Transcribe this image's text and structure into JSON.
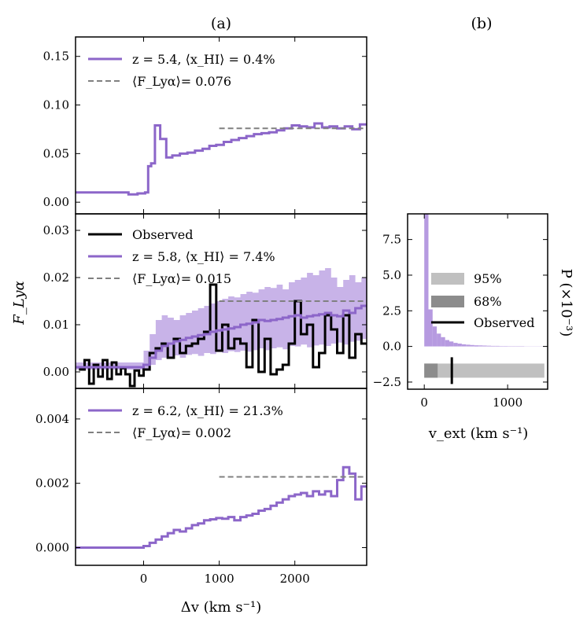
{
  "figure": {
    "label_a": "(a)",
    "label_b": "(b)"
  },
  "colors": {
    "model": "#8c66c9",
    "band": "#b69ae0",
    "mean": "#808080",
    "observed": "#000000",
    "ci95": "#c0c0c0",
    "ci68": "#8c8c8c"
  },
  "chart_data": [
    {
      "id": "z54",
      "type": "line",
      "step": true,
      "xlim": [
        -900,
        2950
      ],
      "ylim": [
        -0.012,
        0.17
      ],
      "yticks": [
        "0.00",
        "0.05",
        "0.10",
        "0.15"
      ],
      "ytick_values": [
        0,
        0.05,
        0.1,
        0.15
      ],
      "legend": {
        "model": "z = 5.4, ⟨x_HI⟩ = 0.4%",
        "mean": "⟨F_Lyα⟩= 0.076"
      },
      "mean": {
        "value": 0.076,
        "x_range": [
          1000,
          2950
        ]
      },
      "series": [
        {
          "name": "model",
          "edges": [
            -900,
            -200,
            -80,
            20,
            60,
            100,
            150,
            220,
            300,
            380,
            480,
            580,
            680,
            780,
            870,
            960,
            1060,
            1160,
            1260,
            1360,
            1460,
            1560,
            1660,
            1760,
            1860,
            1960,
            2060,
            2160,
            2260,
            2360,
            2460,
            2560,
            2660,
            2760,
            2860,
            2950
          ],
          "values": [
            0.01,
            0.008,
            0.009,
            0.01,
            0.037,
            0.04,
            0.079,
            0.065,
            0.046,
            0.048,
            0.05,
            0.051,
            0.053,
            0.055,
            0.058,
            0.059,
            0.062,
            0.064,
            0.066,
            0.068,
            0.07,
            0.071,
            0.072,
            0.074,
            0.076,
            0.079,
            0.078,
            0.077,
            0.081,
            0.077,
            0.078,
            0.076,
            0.078,
            0.075,
            0.08
          ]
        }
      ]
    },
    {
      "id": "z58",
      "type": "line",
      "step": true,
      "xlim": [
        -900,
        2950
      ],
      "ylim": [
        -0.0035,
        0.0335
      ],
      "yticks": [
        "0.00",
        "0.01",
        "0.02",
        "0.03"
      ],
      "ytick_values": [
        0,
        0.01,
        0.02,
        0.03
      ],
      "ylabel": "F_Lyα",
      "legend": {
        "observed": "Observed",
        "model": "z = 5.8, ⟨x_HI⟩ = 7.4%",
        "mean": "⟨F_Lyα⟩= 0.015"
      },
      "mean": {
        "value": 0.015,
        "x_range": [
          1000,
          2950
        ]
      },
      "band": {
        "edges": [
          -900,
          0,
          80,
          160,
          240,
          320,
          400,
          480,
          560,
          640,
          720,
          800,
          880,
          960,
          1040,
          1120,
          1200,
          1280,
          1360,
          1440,
          1520,
          1600,
          1680,
          1760,
          1840,
          1920,
          2000,
          2080,
          2160,
          2240,
          2320,
          2400,
          2480,
          2560,
          2640,
          2720,
          2800,
          2880,
          2950
        ],
        "lower": [
          0.0005,
          0.0006,
          0.0015,
          0.0025,
          0.003,
          0.0032,
          0.0035,
          0.003,
          0.0036,
          0.0038,
          0.0034,
          0.004,
          0.0038,
          0.0042,
          0.004,
          0.0044,
          0.0042,
          0.0045,
          0.0043,
          0.0046,
          0.005,
          0.0046,
          0.005,
          0.0052,
          0.0048,
          0.0055,
          0.0054,
          0.0058,
          0.0052,
          0.0056,
          0.0058,
          0.0055,
          0.006,
          0.0062,
          0.0058,
          0.0064,
          0.0066,
          0.007
        ],
        "upper": [
          0.002,
          0.0045,
          0.008,
          0.011,
          0.012,
          0.0115,
          0.011,
          0.012,
          0.0125,
          0.013,
          0.0135,
          0.014,
          0.0145,
          0.015,
          0.0155,
          0.016,
          0.0158,
          0.0165,
          0.017,
          0.0168,
          0.0175,
          0.018,
          0.0178,
          0.0185,
          0.0175,
          0.019,
          0.0195,
          0.02,
          0.021,
          0.0205,
          0.0215,
          0.022,
          0.02,
          0.018,
          0.0195,
          0.0205,
          0.019,
          0.02
        ]
      },
      "series": [
        {
          "name": "model",
          "edges": [
            -900,
            0,
            80,
            160,
            240,
            320,
            400,
            480,
            560,
            640,
            720,
            800,
            880,
            960,
            1040,
            1120,
            1200,
            1280,
            1360,
            1440,
            1520,
            1600,
            1680,
            1760,
            1840,
            1920,
            2000,
            2080,
            2160,
            2240,
            2320,
            2400,
            2480,
            2560,
            2640,
            2720,
            2800,
            2880,
            2950
          ],
          "values": [
            0.001,
            0.0015,
            0.003,
            0.0045,
            0.0055,
            0.006,
            0.0065,
            0.0068,
            0.0072,
            0.0075,
            0.0078,
            0.008,
            0.0085,
            0.0088,
            0.009,
            0.0092,
            0.0095,
            0.01,
            0.0102,
            0.0105,
            0.011,
            0.0108,
            0.011,
            0.0112,
            0.0115,
            0.0118,
            0.012,
            0.0115,
            0.0118,
            0.012,
            0.0122,
            0.0125,
            0.012,
            0.0118,
            0.013,
            0.0125,
            0.0135,
            0.014
          ]
        },
        {
          "name": "observed",
          "edges": [
            -900,
            -840,
            -780,
            -720,
            -660,
            -600,
            -540,
            -480,
            -420,
            -360,
            -300,
            -240,
            -180,
            -120,
            -60,
            0,
            80,
            160,
            240,
            320,
            400,
            480,
            560,
            640,
            720,
            800,
            880,
            960,
            1040,
            1120,
            1200,
            1280,
            1360,
            1440,
            1520,
            1600,
            1680,
            1760,
            1840,
            1920,
            2000,
            2080,
            2160,
            2240,
            2320,
            2400,
            2480,
            2560,
            2640,
            2720,
            2800,
            2880,
            2950
          ],
          "values": [
            0.001,
            0.0005,
            0.0025,
            -0.0025,
            0.0015,
            -0.001,
            0.0025,
            -0.0015,
            0.002,
            -0.0005,
            0.0008,
            -0.0005,
            -0.003,
            0.0003,
            -0.0008,
            0.0005,
            0.004,
            0.005,
            0.006,
            0.003,
            0.007,
            0.004,
            0.0055,
            0.006,
            0.007,
            0.0085,
            0.0185,
            0.0045,
            0.01,
            0.005,
            0.007,
            0.006,
            0.001,
            0.011,
            0.0,
            0.007,
            -0.0005,
            0.0005,
            0.0015,
            0.006,
            0.015,
            0.008,
            0.01,
            0.001,
            0.004,
            0.012,
            0.009,
            0.004,
            0.012,
            0.003,
            0.008,
            0.006
          ]
        }
      ]
    },
    {
      "id": "z62",
      "type": "line",
      "step": true,
      "xlim": [
        -900,
        2950
      ],
      "ylim": [
        -0.00055,
        0.00495
      ],
      "yticks": [
        "0.000",
        "0.002",
        "0.004"
      ],
      "ytick_values": [
        0,
        0.002,
        0.004
      ],
      "xticks": [
        "0",
        "1000",
        "2000"
      ],
      "xtick_values": [
        0,
        1000,
        2000
      ],
      "xlabel": "Δv (km s⁻¹)",
      "legend": {
        "model": "z = 6.2, ⟨x_HI⟩ = 21.3%",
        "mean": "⟨F_Lyα⟩= 0.002"
      },
      "mean": {
        "value": 0.0022,
        "x_range": [
          1000,
          2950
        ]
      },
      "series": [
        {
          "name": "model",
          "edges": [
            -900,
            0,
            80,
            160,
            240,
            320,
            400,
            480,
            560,
            640,
            720,
            800,
            880,
            960,
            1040,
            1120,
            1200,
            1280,
            1360,
            1440,
            1520,
            1600,
            1680,
            1760,
            1840,
            1920,
            2000,
            2080,
            2160,
            2240,
            2320,
            2400,
            2480,
            2560,
            2640,
            2720,
            2800,
            2880,
            2950
          ],
          "values": [
            0.0,
            5e-05,
            0.00015,
            0.00025,
            0.00035,
            0.00045,
            0.00055,
            0.0005,
            0.0006,
            0.0007,
            0.00075,
            0.00085,
            0.00088,
            0.00092,
            0.0009,
            0.00095,
            0.00085,
            0.00095,
            0.001,
            0.00105,
            0.00115,
            0.0012,
            0.0013,
            0.0014,
            0.0015,
            0.0016,
            0.00165,
            0.0017,
            0.0016,
            0.00175,
            0.00165,
            0.00175,
            0.0016,
            0.0021,
            0.0025,
            0.0023,
            0.0015,
            0.0019
          ]
        }
      ]
    },
    {
      "id": "vext",
      "type": "bar",
      "xlim": [
        -200,
        1480
      ],
      "ylim": [
        -3,
        9.3
      ],
      "yticks": [
        "−2.5",
        "0.0",
        "2.5",
        "5.0",
        "7.5"
      ],
      "ytick_values": [
        -2.5,
        0,
        2.5,
        5.0,
        7.5
      ],
      "xticks": [
        "0",
        "1000"
      ],
      "xtick_values": [
        0,
        1000
      ],
      "xlabel": "v_ext (km s⁻¹)",
      "ylabel": "P (×10⁻³)",
      "legend": {
        "ci95": "95%",
        "ci68": "68%",
        "observed": "Observed"
      },
      "histogram": {
        "bin_width": 50,
        "bin_starts": [
          0,
          50,
          100,
          150,
          200,
          250,
          300,
          350,
          400,
          450,
          500,
          550,
          600,
          650,
          700,
          750,
          800,
          850,
          900,
          950,
          1000,
          1050,
          1100,
          1150,
          1200,
          1250,
          1300,
          1350,
          1400
        ],
        "values": [
          9.3,
          2.6,
          1.4,
          0.9,
          0.65,
          0.45,
          0.35,
          0.25,
          0.2,
          0.15,
          0.12,
          0.1,
          0.08,
          0.07,
          0.06,
          0.05,
          0.04,
          0.04,
          0.03,
          0.03,
          0.02,
          0.02,
          0.02,
          0.02,
          0.01,
          0.01,
          0.01,
          0.01,
          0.01
        ]
      },
      "intervals": {
        "y": -1.7,
        "ci95": [
          0,
          1440
        ],
        "ci68": [
          0,
          160
        ],
        "observed": 330
      }
    }
  ]
}
